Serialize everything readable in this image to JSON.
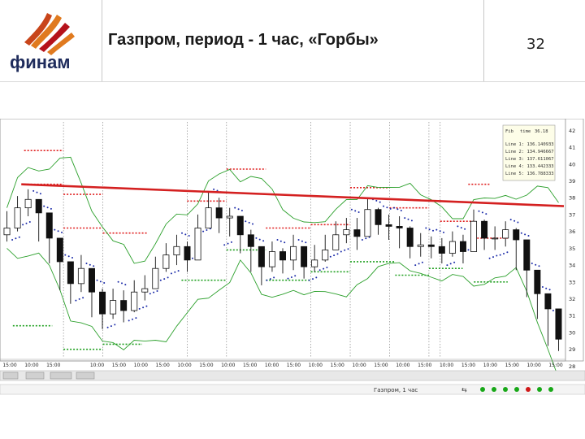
{
  "slide": {
    "title": "Газпром, период - 1 час, «Горбы»",
    "page_number": "32",
    "logo_text": "финам",
    "logo_colors": {
      "orange": "#e07a1f",
      "red": "#b5121b",
      "text": "#1f2c5c"
    }
  },
  "chart_window": {
    "status_text": "Газпром, 1 час"
  },
  "chart_data": {
    "type": "candlestick",
    "title": "",
    "xlabel": "",
    "ylabel": "",
    "ylim": [
      128.5,
      142.5
    ],
    "y_ticks": [
      "42",
      "41",
      "40",
      "39",
      "38",
      "37",
      "36",
      "35",
      "34",
      "33",
      "32",
      "31",
      "30",
      "29",
      "28"
    ],
    "x_ticks": [
      "15:00",
      "10:00",
      "15:00",
      "",
      "10:00",
      "15:00",
      "10:00",
      "15:00",
      "10:00",
      "15:00",
      "10:00",
      "15:00",
      "10:00",
      "15:00",
      "10:00",
      "15:00",
      "10:00",
      "15:00",
      "10:00",
      "15:00",
      "10:00",
      "15:00",
      "10:00",
      "15:00",
      "10:00",
      "15:00"
    ],
    "colors": {
      "trendline": "#d42020",
      "bollinger": "#2ca02c",
      "sar": "#1a2aa8",
      "levels_red": "#e02020",
      "levels_green": "#20a020",
      "candles": "#111111"
    },
    "trendline": {
      "start": 138.8,
      "end": 137.5
    },
    "close": [
      136.2,
      137.4,
      137.9,
      137.1,
      135.6,
      134.2,
      132.9,
      133.8,
      132.4,
      131.1,
      131.9,
      131.3,
      132.4,
      132.6,
      133.8,
      134.6,
      135.1,
      134.3,
      136.2,
      137.4,
      136.8,
      136.9,
      135.8,
      135.1,
      133.9,
      134.8,
      134.3,
      135.1,
      133.9,
      134.3,
      134.9,
      135.8,
      136.1,
      135.7,
      137.3,
      136.4,
      136.3,
      136.2,
      135.1,
      135.2,
      135.1,
      134.7,
      135.4,
      134.8,
      136.6,
      135.6,
      135.6,
      136.1,
      135.5,
      133.7,
      132.3,
      131.4,
      129.6
    ],
    "high": [
      137.2,
      138.1,
      138.5,
      137.9,
      137.0,
      135.6,
      134.1,
      134.6,
      133.6,
      132.6,
      132.6,
      132.5,
      133.1,
      133.4,
      134.5,
      135.3,
      135.8,
      135.4,
      137.0,
      138.3,
      138.0,
      137.4,
      136.9,
      136.1,
      135.1,
      135.4,
      135.0,
      135.8,
      135.0,
      135.2,
      135.8,
      136.6,
      136.8,
      136.8,
      138.0,
      137.4,
      137.0,
      136.9,
      136.3,
      135.9,
      135.7,
      135.6,
      136.0,
      135.8,
      137.3,
      136.7,
      136.3,
      136.6,
      136.2,
      135.4,
      133.6,
      132.2,
      130.8
    ],
    "low": [
      135.4,
      136.0,
      136.9,
      135.4,
      134.1,
      132.5,
      131.7,
      132.4,
      130.9,
      130.2,
      130.8,
      130.6,
      131.2,
      131.9,
      132.8,
      133.6,
      134.0,
      133.6,
      134.9,
      136.5,
      135.9,
      135.7,
      134.7,
      133.6,
      132.8,
      133.6,
      133.5,
      133.7,
      133.2,
      133.6,
      134.2,
      135.0,
      135.3,
      134.9,
      136.0,
      135.8,
      135.5,
      135.0,
      134.4,
      134.5,
      134.4,
      134.1,
      134.5,
      134.1,
      135.4,
      134.9,
      134.9,
      135.1,
      133.7,
      132.1,
      130.8,
      129.2,
      128.9
    ],
    "levels_red": [
      {
        "y": 140.8,
        "x0": 0.04,
        "x1": 0.11
      },
      {
        "y": 138.8,
        "x0": 0.04,
        "x1": 0.11
      },
      {
        "y": 138.2,
        "x0": 0.11,
        "x1": 0.18
      },
      {
        "y": 136.2,
        "x0": 0.11,
        "x1": 0.18
      },
      {
        "y": 135.9,
        "x0": 0.18,
        "x1": 0.26
      },
      {
        "y": 139.7,
        "x0": 0.4,
        "x1": 0.47
      },
      {
        "y": 137.8,
        "x0": 0.33,
        "x1": 0.4
      },
      {
        "y": 136.2,
        "x0": 0.47,
        "x1": 0.55
      },
      {
        "y": 136.4,
        "x0": 0.55,
        "x1": 0.62
      },
      {
        "y": 138.6,
        "x0": 0.62,
        "x1": 0.69
      },
      {
        "y": 137.4,
        "x0": 0.69,
        "x1": 0.76
      },
      {
        "y": 136.6,
        "x0": 0.78,
        "x1": 0.84
      },
      {
        "y": 138.8,
        "x0": 0.83,
        "x1": 0.87
      },
      {
        "y": 135.6,
        "x0": 0.84,
        "x1": 0.9
      }
    ],
    "levels_green": [
      {
        "y": 130.4,
        "x0": 0.02,
        "x1": 0.09
      },
      {
        "y": 129.0,
        "x0": 0.11,
        "x1": 0.18
      },
      {
        "y": 129.3,
        "x0": 0.18,
        "x1": 0.25
      },
      {
        "y": 133.1,
        "x0": 0.32,
        "x1": 0.4
      },
      {
        "y": 134.9,
        "x0": 0.4,
        "x1": 0.47
      },
      {
        "y": 133.1,
        "x0": 0.47,
        "x1": 0.55
      },
      {
        "y": 133.6,
        "x0": 0.55,
        "x1": 0.62
      },
      {
        "y": 134.2,
        "x0": 0.62,
        "x1": 0.7
      },
      {
        "y": 133.4,
        "x0": 0.7,
        "x1": 0.76
      },
      {
        "y": 133.8,
        "x0": 0.76,
        "x1": 0.82
      },
      {
        "y": 133.0,
        "x0": 0.84,
        "x1": 0.9
      }
    ],
    "legend": {
      "header": [
        "Fib",
        "time",
        "36.18"
      ],
      "lines": [
        "Line 1: 136.140933",
        "Line 2: 134.946667",
        "Line 3: 137.611067",
        "Line 4: 133.442333",
        "Line 5: 136.788333"
      ]
    }
  }
}
